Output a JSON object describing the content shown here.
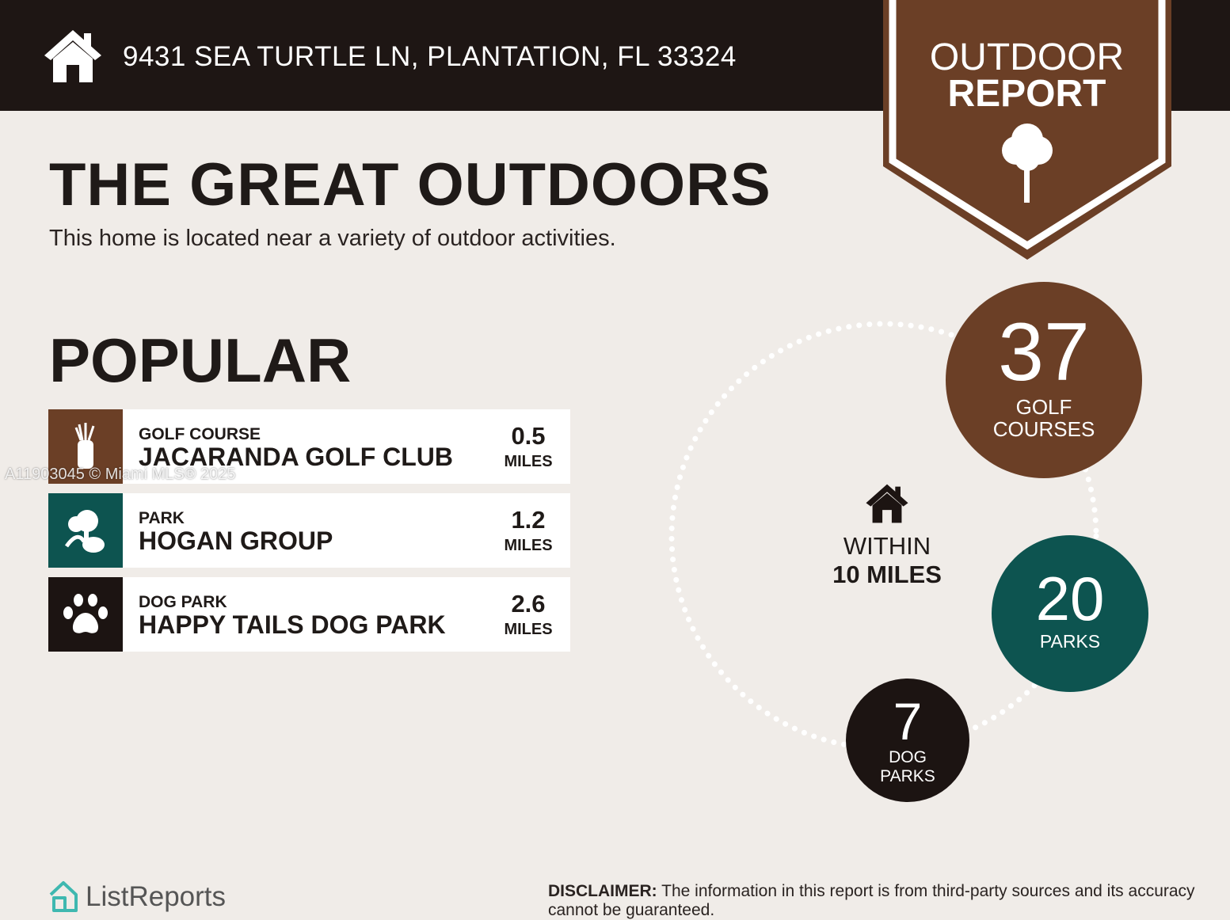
{
  "header": {
    "address": "9431 SEA TURTLE LN, PLANTATION, FL 33324",
    "icon": "house-icon"
  },
  "badge": {
    "line1": "OUTDOOR",
    "line2": "REPORT",
    "icon": "tree-icon"
  },
  "title": "THE GREAT OUTDOORS",
  "subtitle": "This home is located near a variety of outdoor activities.",
  "popular": {
    "heading": "POPULAR",
    "items": [
      {
        "category": "GOLF COURSE",
        "name": "JACARANDA GOLF CLUB",
        "distance": "0.5",
        "unit": "MILES",
        "icon": "golf-bag-icon",
        "color": "#6b3f26"
      },
      {
        "category": "PARK",
        "name": "HOGAN GROUP",
        "distance": "1.2",
        "unit": "MILES",
        "icon": "park-trees-icon",
        "color": "#0d5450"
      },
      {
        "category": "DOG PARK",
        "name": "HAPPY TAILS DOG PARK",
        "distance": "2.6",
        "unit": "MILES",
        "icon": "paw-icon",
        "color": "#1c1412"
      }
    ]
  },
  "watermark": "A11903045 © Miami MLS® 2025",
  "summary": {
    "within_line1": "WITHIN",
    "within_line2": "10 MILES",
    "golf": {
      "count": "37",
      "label1": "GOLF",
      "label2": "COURSES",
      "color": "#6b3f26"
    },
    "parks": {
      "count": "20",
      "label1": "PARKS",
      "color": "#0d5450"
    },
    "dog_parks": {
      "count": "7",
      "label1": "DOG",
      "label2": "PARKS",
      "color": "#1c1412"
    }
  },
  "footer": {
    "logo": "ListReports",
    "disclaimer_label": "DISCLAIMER:",
    "disclaimer_text": " The information in this report is from third-party sources and its accuracy cannot be guaranteed."
  }
}
